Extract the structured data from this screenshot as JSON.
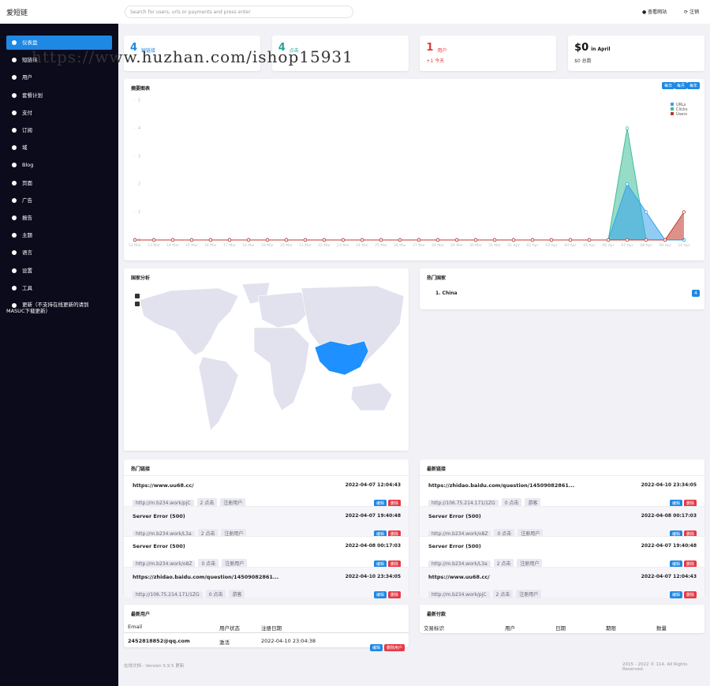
{
  "header": {
    "brand": "爱短链",
    "search_placeholder": "Search for users, urls or payments and press enter",
    "view_site": "查看网站",
    "logout": "注销"
  },
  "watermark": "https://www.huzhan.com/ishop15931",
  "sidebar": [
    "仪表盘",
    "短链接",
    "用户",
    "套餐计划",
    "支付",
    "订阅",
    "域",
    "Blog",
    "页面",
    "广告",
    "报告",
    "主题",
    "语言",
    "设置",
    "工具",
    "更新（不支持在线更新的请到MASUC下载更新）"
  ],
  "stats": [
    {
      "value": "4",
      "label": "短链接"
    },
    {
      "value": "4",
      "label": "点击"
    },
    {
      "value": "1",
      "label": "用户",
      "sub": "+1 今天"
    },
    {
      "value": "$0",
      "label": "in April",
      "sub": "$0 总数"
    }
  ],
  "chart_card": {
    "title": "摘要图表",
    "buttons": [
      "每日",
      "每月",
      "每年"
    ]
  },
  "chart_data": {
    "type": "area",
    "categories": [
      "12 Mar",
      "13 Mar",
      "14 Mar",
      "15 Mar",
      "16 Mar",
      "17 Mar",
      "18 Mar",
      "19 Mar",
      "20 Mar",
      "21 Mar",
      "22 Mar",
      "23 Mar",
      "24 Mar",
      "25 Mar",
      "26 Mar",
      "27 Mar",
      "28 Mar",
      "29 Mar",
      "30 Mar",
      "31 Mar",
      "01 Apr",
      "02 Apr",
      "03 Apr",
      "04 Apr",
      "05 Apr",
      "06 Apr",
      "07 Apr",
      "08 Apr",
      "09 Apr",
      "10 Apr"
    ],
    "series": [
      {
        "name": "URLs",
        "color": "#36a2eb",
        "values": [
          0,
          0,
          0,
          0,
          0,
          0,
          0,
          0,
          0,
          0,
          0,
          0,
          0,
          0,
          0,
          0,
          0,
          0,
          0,
          0,
          0,
          0,
          0,
          0,
          0,
          0,
          2,
          1,
          0,
          0
        ]
      },
      {
        "name": "Clicks",
        "color": "#3fbf99",
        "values": [
          0,
          0,
          0,
          0,
          0,
          0,
          0,
          0,
          0,
          0,
          0,
          0,
          0,
          0,
          0,
          0,
          0,
          0,
          0,
          0,
          0,
          0,
          0,
          0,
          0,
          0,
          4,
          0,
          0,
          0
        ]
      },
      {
        "name": "Users",
        "color": "#c0392b",
        "values": [
          0,
          0,
          0,
          0,
          0,
          0,
          0,
          0,
          0,
          0,
          0,
          0,
          0,
          0,
          0,
          0,
          0,
          0,
          0,
          0,
          0,
          0,
          0,
          0,
          0,
          0,
          0,
          0,
          0,
          1
        ]
      }
    ],
    "ylim": [
      0,
      5
    ],
    "yticks": [
      0,
      1,
      2,
      3,
      4,
      5
    ],
    "legend": "top-right"
  },
  "map_card": {
    "title": "国家分析"
  },
  "countries_card": {
    "title": "热门国家",
    "rows": [
      {
        "name": "1. China",
        "count": "4"
      }
    ]
  },
  "link_actions": [
    "编辑",
    "删除"
  ],
  "top_links": {
    "title": "热门链接",
    "rows": [
      {
        "title": "https://www.uu68.cc/",
        "date": "2022-04-07 12:04:43",
        "short_url": "http://m.b234.work/pjC",
        "clicks": "2 点击",
        "type": "注册用户"
      },
      {
        "title": "Server Error (500)",
        "date": "2022-04-07 19:40:48",
        "short_url": "http://m.b234.work/L3a",
        "clicks": "2 点击",
        "type": "注册用户"
      },
      {
        "title": "Server Error (500)",
        "date": "2022-04-08 00:17:03",
        "short_url": "http://m.b234.work/o8Z",
        "clicks": "0 点击",
        "type": "注册用户"
      },
      {
        "title": "https://zhidao.baidu.com/question/14509082861...",
        "date": "2022-04-10 23:34:05",
        "short_url": "http://106.75.214.171/1ZG",
        "clicks": "0 点击",
        "type": "游客"
      }
    ]
  },
  "latest_links": {
    "title": "最新链接",
    "rows": [
      {
        "title": "https://zhidao.baidu.com/question/14509082861...",
        "date": "2022-04-10 23:34:05",
        "short_url": "http://106.75.214.171/1ZG",
        "clicks": "0 点击",
        "type": "游客"
      },
      {
        "title": "Server Error (500)",
        "date": "2022-04-08 00:17:03",
        "short_url": "http://m.b234.work/o8Z",
        "clicks": "0 点击",
        "type": "注册用户"
      },
      {
        "title": "Server Error (500)",
        "date": "2022-04-07 19:40:48",
        "short_url": "http://m.b234.work/L3a",
        "clicks": "2 点击",
        "type": "注册用户"
      },
      {
        "title": "https://www.uu68.cc/",
        "date": "2022-04-07 12:04:43",
        "short_url": "http://m.b234.work/pjC",
        "clicks": "2 点击",
        "type": "注册用户"
      }
    ]
  },
  "users_card": {
    "title": "最新用户",
    "headers": [
      "Email",
      "用户状态",
      "注册日期"
    ],
    "rows": [
      [
        "2452818852@qq.com",
        "激活",
        "2022-04-10 23:04:38"
      ]
    ],
    "actions": [
      "编辑",
      "删除用户"
    ]
  },
  "payments_card": {
    "title": "最新付款",
    "headers": [
      "交易标识",
      "用户",
      "日期",
      "期限",
      "数量"
    ]
  },
  "footer": {
    "left": "在线文档 - Version 5.9.5 更新",
    "right": "2015 - 2022 © 114. All Rights Reserved."
  }
}
